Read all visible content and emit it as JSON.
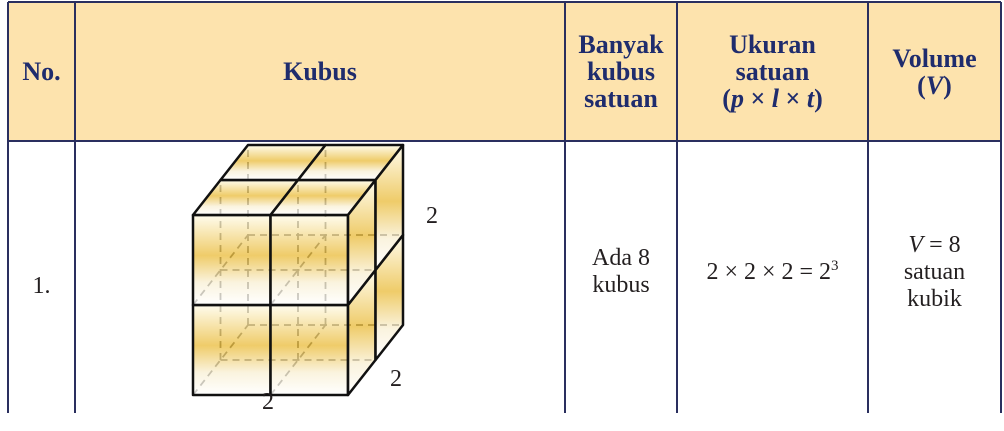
{
  "header": {
    "no": "No.",
    "kubus": "Kubus",
    "banyak": [
      "Banyak",
      "kubus",
      "satuan"
    ],
    "ukuran": [
      "Ukuran",
      "satuan"
    ],
    "ukuran_formula": [
      "(",
      "p",
      " × ",
      "l",
      " × ",
      "t",
      ")"
    ],
    "volume": "Volume",
    "volume_symbol": [
      "(",
      "V",
      ")"
    ]
  },
  "rows": [
    {
      "no": "1.",
      "cube_labels": [
        "2",
        "2",
        "2"
      ],
      "banyak": [
        "Ada 8",
        "kubus"
      ],
      "ukuran_base": "2 × 2 × 2 = 2",
      "ukuran_exp": "3",
      "volume_symbol": "V",
      "volume_eq": " = 8",
      "volume_unit": [
        "satuan",
        "kubik"
      ]
    }
  ]
}
